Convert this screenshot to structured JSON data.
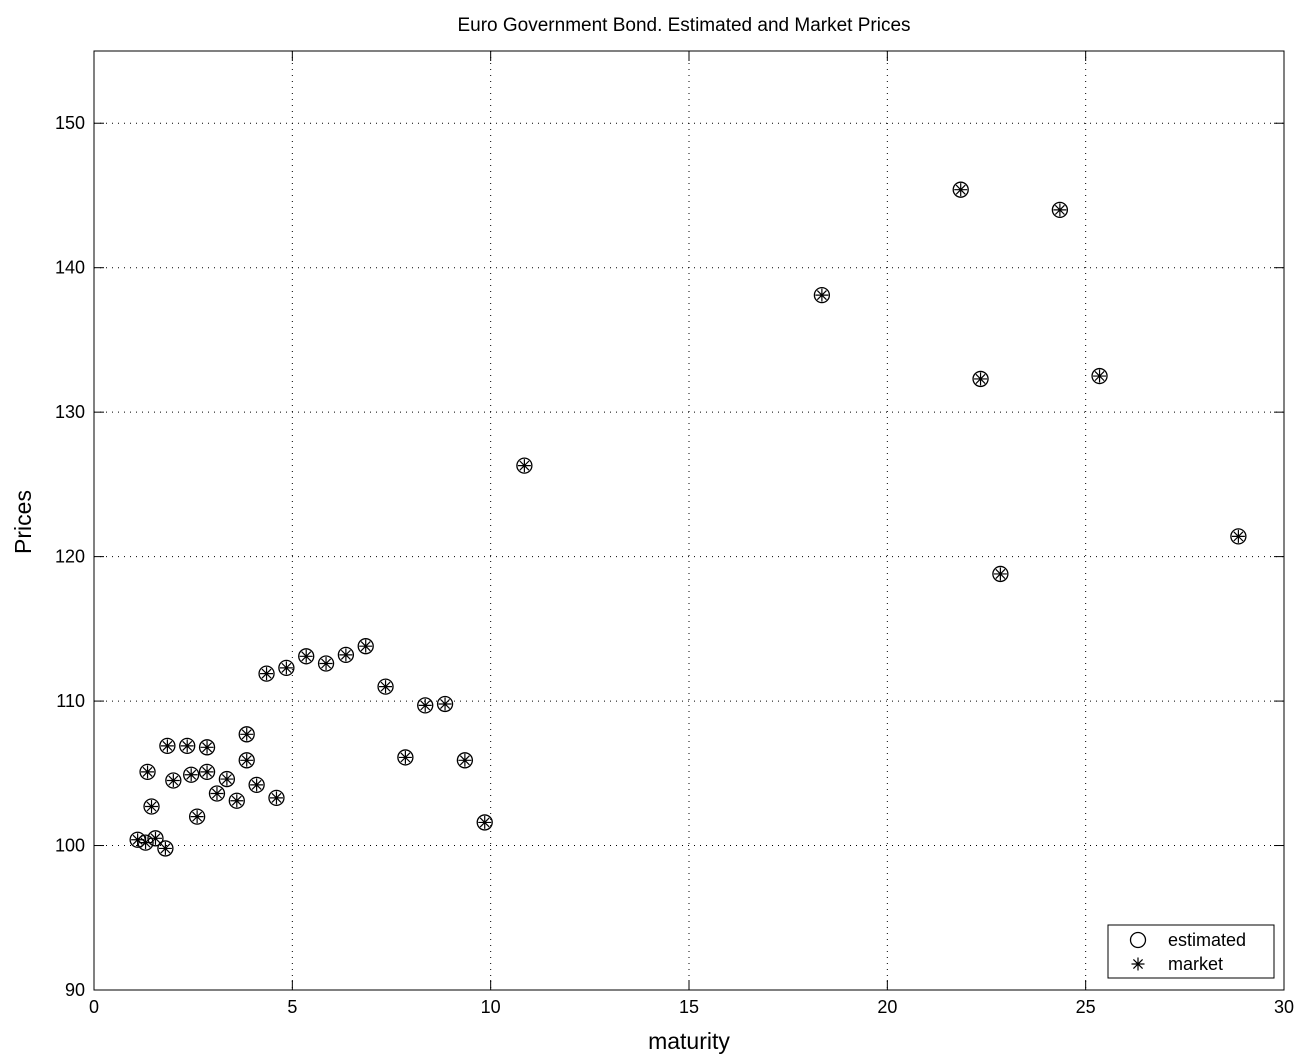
{
  "chart_data": {
    "type": "scatter",
    "title": "Euro Government Bond. Estimated and Market Prices",
    "xlabel": "maturity",
    "ylabel": "Prices",
    "xlim": [
      0,
      30
    ],
    "ylim": [
      90,
      155
    ],
    "xticks": [
      0,
      5,
      10,
      15,
      20,
      25,
      30
    ],
    "yticks": [
      90,
      100,
      110,
      120,
      130,
      140,
      150
    ],
    "xtick_labels": [
      "0",
      "5",
      "10",
      "15",
      "20",
      "25",
      "30"
    ],
    "ytick_labels": [
      "90",
      "100",
      "110",
      "120",
      "130",
      "140",
      "150"
    ],
    "grid": true,
    "legend_position": "bottom-right",
    "series": [
      {
        "name": "estimated",
        "marker": "circle",
        "x": [
          1.1,
          1.3,
          1.55,
          1.8,
          1.35,
          1.45,
          1.85,
          2.0,
          2.35,
          2.45,
          2.6,
          2.85,
          2.85,
          3.1,
          3.35,
          3.6,
          3.85,
          3.85,
          4.1,
          4.6,
          4.35,
          4.85,
          5.35,
          5.85,
          6.35,
          6.85,
          7.35,
          7.85,
          8.35,
          8.85,
          9.35,
          9.85,
          10.85,
          18.35,
          21.85,
          22.35,
          22.85,
          24.35,
          25.35,
          28.85
        ],
        "y": [
          100.4,
          100.2,
          100.5,
          99.8,
          105.1,
          102.7,
          106.9,
          104.5,
          106.9,
          104.9,
          102.0,
          106.8,
          105.1,
          103.6,
          104.6,
          103.1,
          107.7,
          105.9,
          104.2,
          103.3,
          111.9,
          112.3,
          113.1,
          112.6,
          113.2,
          113.8,
          111.0,
          106.1,
          109.7,
          109.8,
          105.9,
          101.6,
          126.3,
          138.1,
          145.4,
          132.3,
          118.8,
          144.0,
          132.5,
          121.4
        ]
      },
      {
        "name": "market",
        "marker": "asterisk",
        "x": [
          1.1,
          1.3,
          1.55,
          1.8,
          1.35,
          1.45,
          1.85,
          2.0,
          2.35,
          2.45,
          2.6,
          2.85,
          2.85,
          3.1,
          3.35,
          3.6,
          3.85,
          3.85,
          4.1,
          4.6,
          4.35,
          4.85,
          5.35,
          5.85,
          6.35,
          6.85,
          7.35,
          7.85,
          8.35,
          8.85,
          9.35,
          9.85,
          10.85,
          18.35,
          21.85,
          22.35,
          22.85,
          24.35,
          25.35,
          28.85
        ],
        "y": [
          100.4,
          100.2,
          100.5,
          99.8,
          105.1,
          102.7,
          106.9,
          104.5,
          106.9,
          104.9,
          102.0,
          106.8,
          105.1,
          103.6,
          104.6,
          103.1,
          107.7,
          105.9,
          104.2,
          103.3,
          111.9,
          112.3,
          113.1,
          112.6,
          113.2,
          113.8,
          111.0,
          106.1,
          109.7,
          109.8,
          105.9,
          101.6,
          126.3,
          138.1,
          145.4,
          132.3,
          118.8,
          144.0,
          132.5,
          121.4
        ]
      }
    ]
  }
}
